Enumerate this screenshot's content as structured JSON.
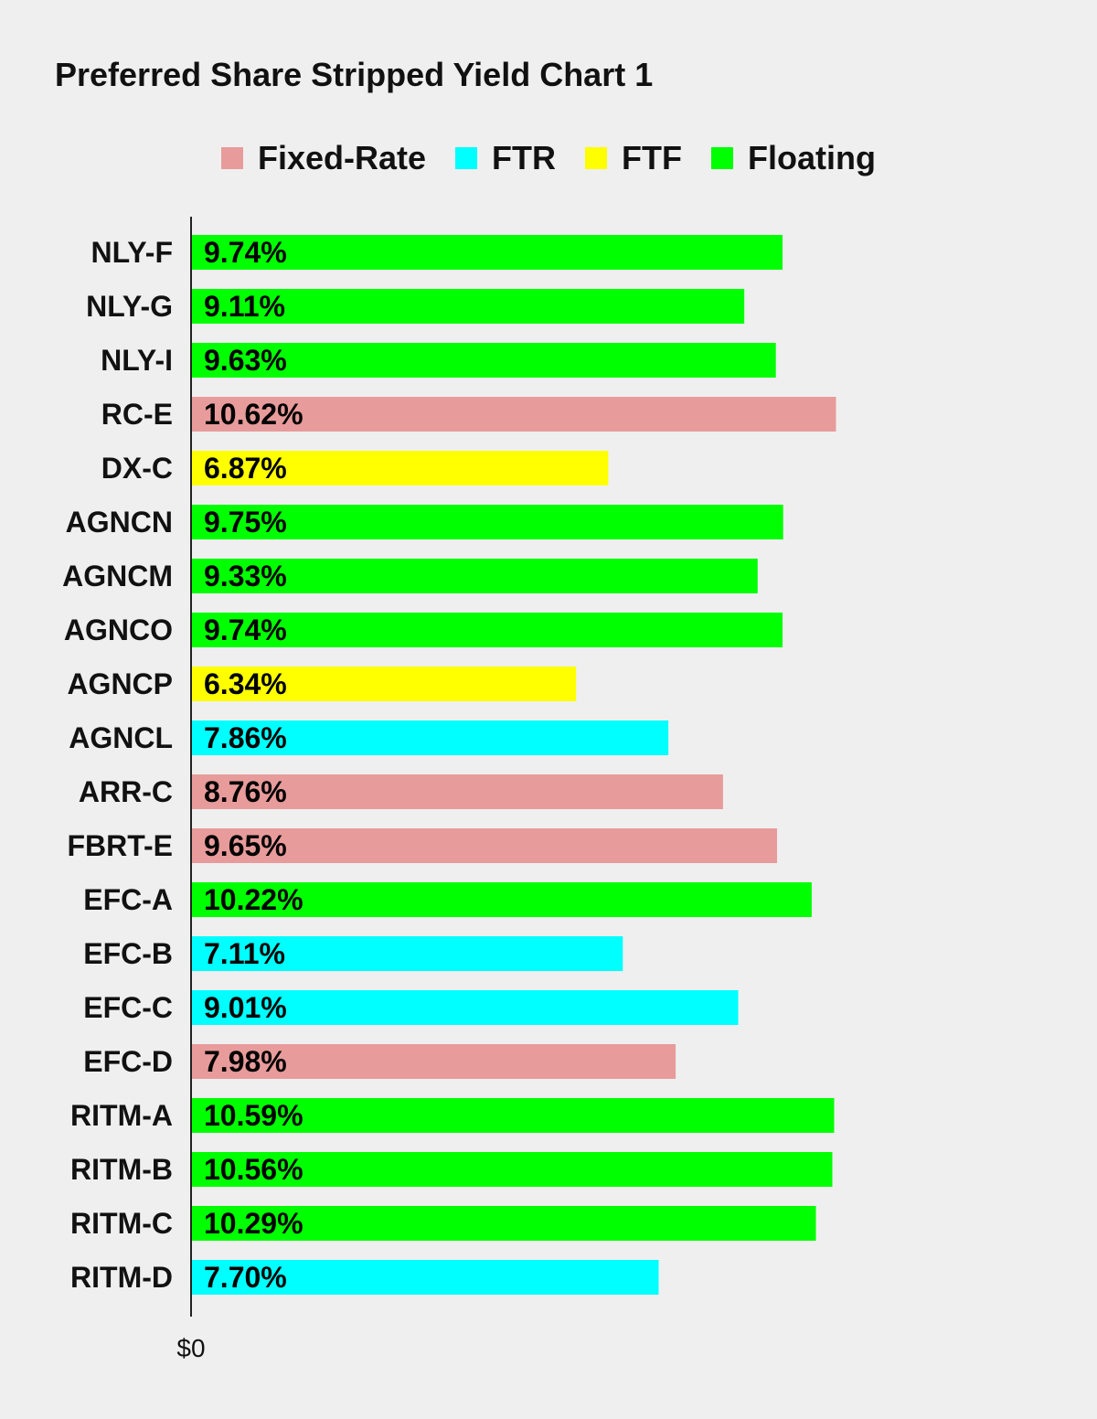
{
  "chart_data": {
    "type": "bar",
    "orientation": "horizontal",
    "title": "Preferred Share Stripped Yield Chart 1",
    "xlabel": "",
    "ylabel": "",
    "xlim": [
      0,
      12.6
    ],
    "x_tick_labels": [
      "$0"
    ],
    "grid": false,
    "legend_position": "top-center",
    "legend": [
      {
        "name": "Fixed-Rate",
        "color": "#e89b9b"
      },
      {
        "name": "FTR",
        "color": "#00ffff"
      },
      {
        "name": "FTF",
        "color": "#ffff00"
      },
      {
        "name": "Floating",
        "color": "#00ff00"
      }
    ],
    "categories": [
      "NLY-F",
      "NLY-G",
      "NLY-I",
      "RC-E",
      "DX-C",
      "AGNCN",
      "AGNCM",
      "AGNCO",
      "AGNCP",
      "AGNCL",
      "ARR-C",
      "FBRT-E",
      "EFC-A",
      "EFC-B",
      "EFC-C",
      "EFC-D",
      "RITM-A",
      "RITM-B",
      "RITM-C",
      "RITM-D"
    ],
    "values": [
      9.74,
      9.11,
      9.63,
      10.62,
      6.87,
      9.75,
      9.33,
      9.74,
      6.34,
      7.86,
      8.76,
      9.65,
      10.22,
      7.11,
      9.01,
      7.98,
      10.59,
      10.56,
      10.29,
      7.7
    ],
    "labels": [
      "9.74%",
      "9.11%",
      "9.63%",
      "10.62%",
      "6.87%",
      "9.75%",
      "9.33%",
      "9.74%",
      "6.34%",
      "7.86%",
      "8.76%",
      "9.65%",
      "10.22%",
      "7.11%",
      "9.01%",
      "7.98%",
      "10.59%",
      "10.56%",
      "10.29%",
      "7.70%"
    ],
    "types": [
      "Floating",
      "Floating",
      "Floating",
      "Fixed-Rate",
      "FTF",
      "Floating",
      "Floating",
      "Floating",
      "FTF",
      "FTR",
      "Fixed-Rate",
      "Fixed-Rate",
      "Floating",
      "FTR",
      "FTR",
      "Fixed-Rate",
      "Floating",
      "Floating",
      "Floating",
      "FTR"
    ]
  },
  "colors": {
    "background": "#efefef",
    "axis": "#222222",
    "text": "#111111"
  }
}
